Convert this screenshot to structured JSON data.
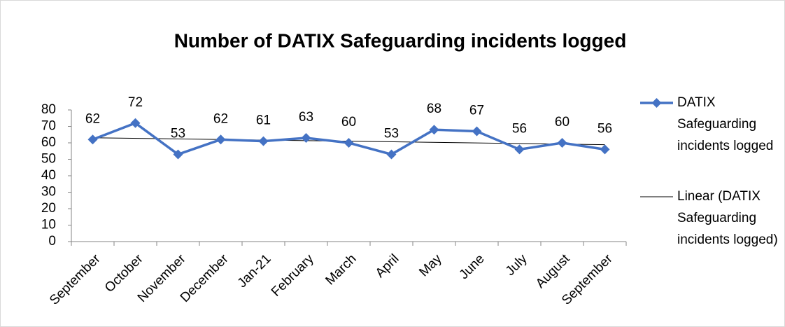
{
  "chart_data": {
    "type": "line",
    "title": "Number of DATIX Safeguarding incidents logged",
    "categories": [
      "September",
      "October",
      "November",
      "December",
      "Jan-21",
      "February",
      "March",
      "April",
      "May",
      "June",
      "July",
      "August",
      "September"
    ],
    "series": [
      {
        "name": "DATIX Safeguarding incidents logged",
        "color": "#4472c4",
        "values": [
          62,
          72,
          53,
          62,
          61,
          63,
          60,
          53,
          68,
          67,
          56,
          60,
          56
        ]
      }
    ],
    "trendline": {
      "name": "Linear (DATIX Safeguarding incidents logged)",
      "color": "#000000",
      "start": 63.1,
      "end": 58.9
    },
    "ylim": [
      0,
      80
    ],
    "yticks": [
      0,
      10,
      20,
      30,
      40,
      50,
      60,
      70,
      80
    ],
    "grid": false,
    "legend": "right"
  }
}
